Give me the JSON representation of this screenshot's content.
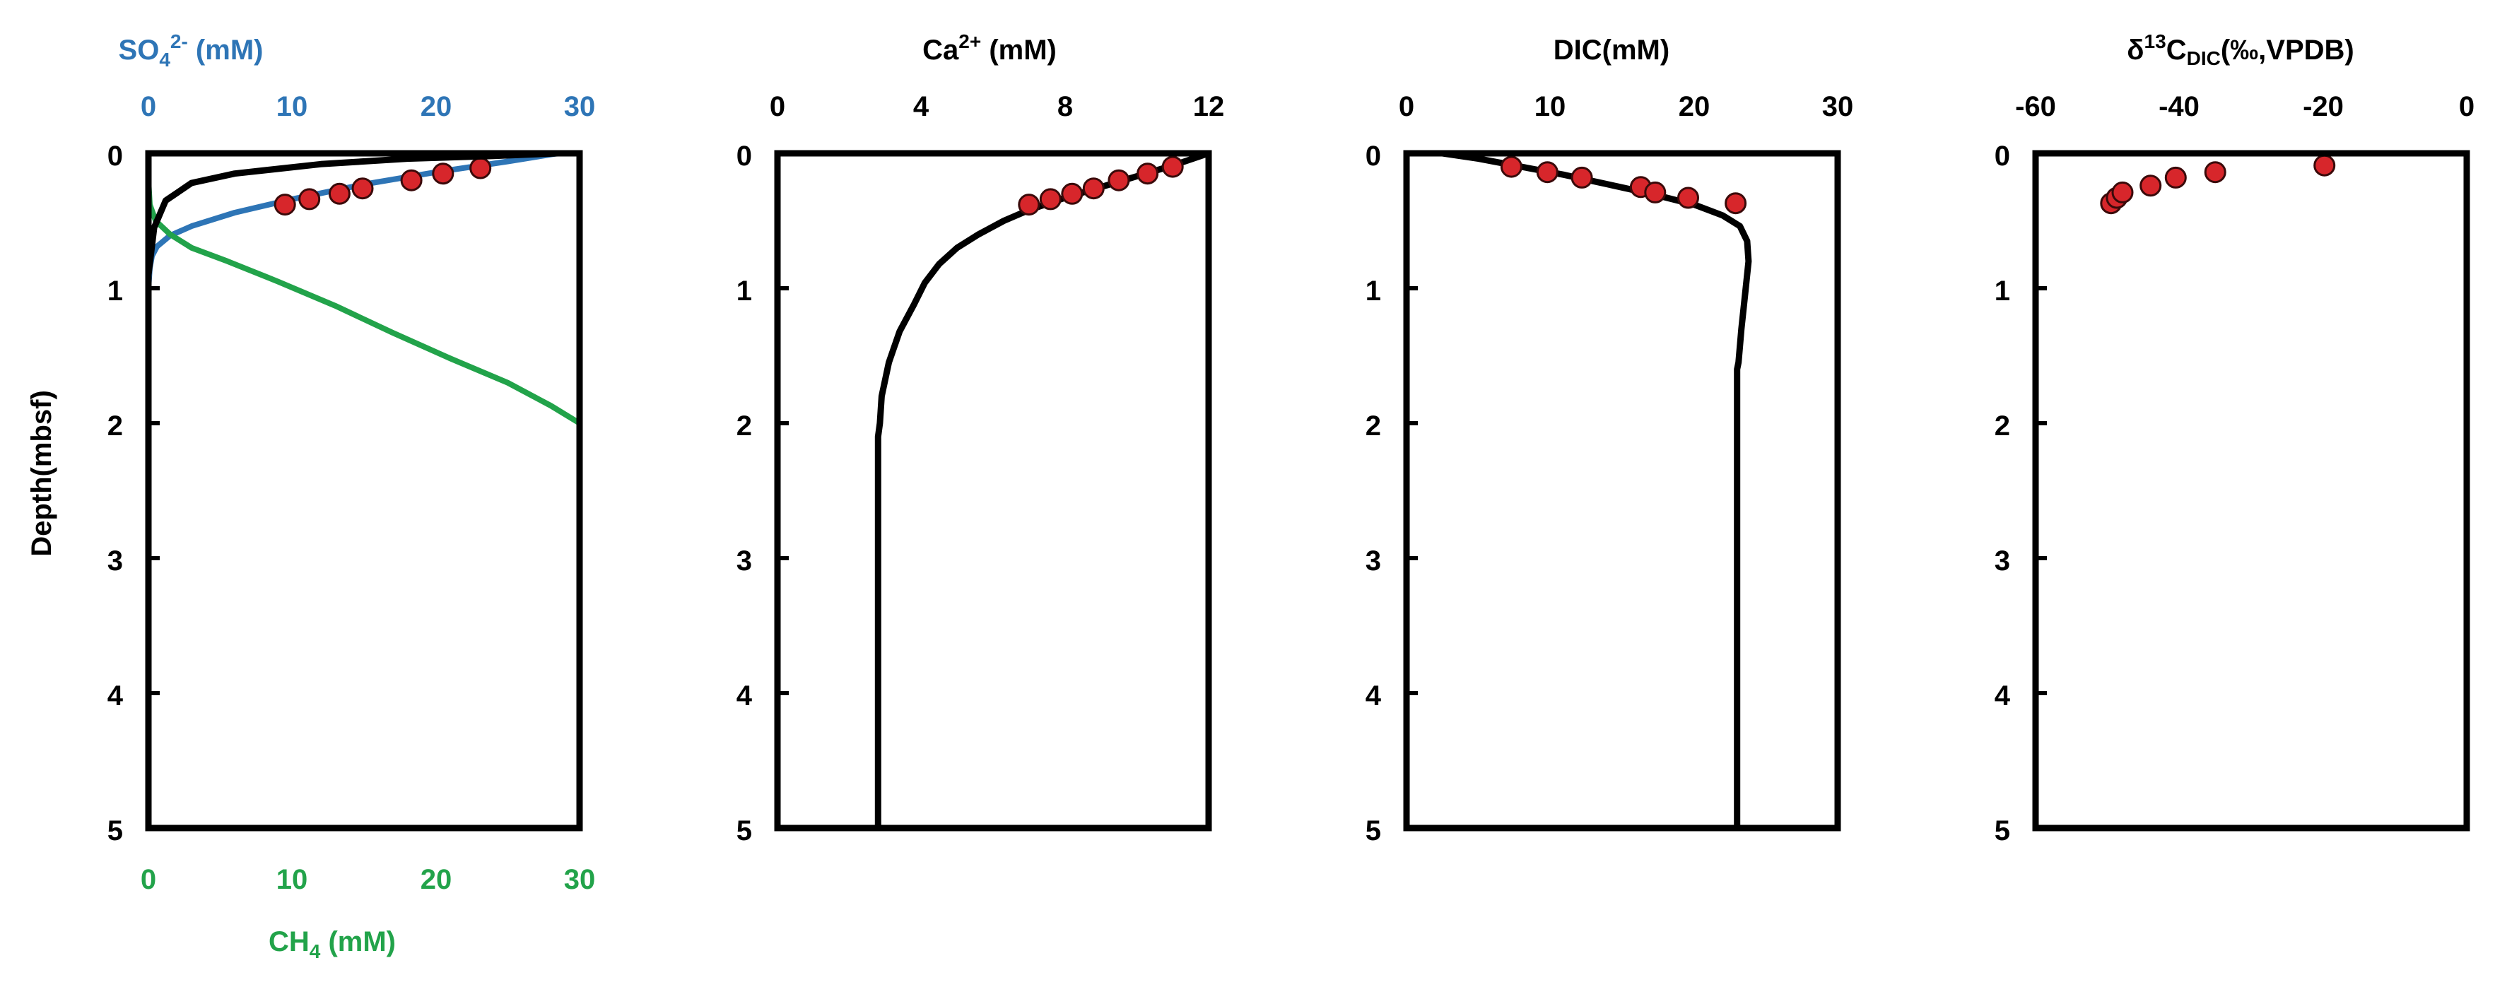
{
  "colors": {
    "sulfate": "#2e75b6",
    "methane": "#22a34a",
    "model": "#000000",
    "marker": "#d7262b"
  },
  "chart_data": [
    {
      "type": "line",
      "ylabel": "Depth(mbsf)",
      "ylim": [
        5,
        0
      ],
      "y_ticks": [
        "0",
        "1",
        "2",
        "3",
        "4",
        "5"
      ],
      "top_axis": {
        "label_main": "SO",
        "label_sub": "4",
        "label_sup": "2-",
        "label_unit": " (mM)",
        "xlim": [
          0,
          30
        ],
        "ticks": [
          "0",
          "10",
          "20",
          "30"
        ]
      },
      "bottom_axis": {
        "label_main": "CH",
        "label_sub": "4",
        "label_unit": " (mM)",
        "xlim": [
          0,
          30
        ],
        "ticks": [
          "0",
          "10",
          "20",
          "30"
        ]
      },
      "series": [
        {
          "key": "so4_model",
          "axis": "top",
          "style": "line",
          "color": "#2e75b6",
          "x": [
            28.5,
            25,
            20,
            15,
            10,
            6,
            3,
            1.5,
            0.6,
            0.25,
            0.1,
            0,
            0
          ],
          "y": [
            0,
            0.06,
            0.14,
            0.23,
            0.34,
            0.44,
            0.54,
            0.61,
            0.69,
            0.76,
            0.85,
            1.0,
            5.0
          ]
        },
        {
          "key": "so4_measured",
          "axis": "top",
          "style": "points",
          "color": "#d7262b",
          "x": [
            9.5,
            11.2,
            13.3,
            14.9,
            18.3,
            20.5,
            23.1
          ],
          "y": [
            0.38,
            0.34,
            0.3,
            0.26,
            0.2,
            0.15,
            0.11
          ]
        },
        {
          "key": "ch4_model",
          "axis": "bottom",
          "style": "line",
          "color": "#22a34a",
          "x": [
            0,
            0,
            0.1,
            0.5,
            1.5,
            3,
            5.5,
            9,
            13,
            17,
            21,
            25,
            28,
            30
          ],
          "y": [
            0,
            0.2,
            0.38,
            0.5,
            0.6,
            0.7,
            0.8,
            0.95,
            1.13,
            1.33,
            1.52,
            1.7,
            1.87,
            2.0
          ]
        },
        {
          "key": "ch4_top",
          "axis": "bottom",
          "style": "line",
          "color": "#000000",
          "x": [
            0,
            0.4,
            1.2,
            3,
            6,
            12,
            18,
            24,
            28.5
          ],
          "y": [
            0.9,
            0.55,
            0.35,
            0.22,
            0.15,
            0.08,
            0.04,
            0.02,
            0
          ]
        }
      ]
    },
    {
      "type": "line",
      "ylim": [
        5,
        0
      ],
      "y_ticks": [
        "0",
        "1",
        "2",
        "3",
        "4",
        "5"
      ],
      "top_axis": {
        "label_main": "Ca",
        "label_sup": "2+",
        "label_unit": " (mM)",
        "xlim": [
          0,
          12
        ],
        "ticks": [
          "0",
          "4",
          "8",
          "12"
        ]
      },
      "series": [
        {
          "key": "ca_model",
          "style": "line",
          "color": "#000000",
          "x": [
            12,
            11,
            10,
            9,
            8,
            7,
            6.3,
            5.6,
            5,
            4.5,
            4.1,
            3.8,
            3.4,
            3.1,
            2.9,
            2.85,
            2.8,
            2.8,
            2.8
          ],
          "y": [
            0,
            0.09,
            0.17,
            0.25,
            0.33,
            0.42,
            0.5,
            0.6,
            0.7,
            0.82,
            0.96,
            1.12,
            1.32,
            1.55,
            1.8,
            2.0,
            2.1,
            3.5,
            5.0
          ]
        },
        {
          "key": "ca_measured",
          "style": "points",
          "color": "#d7262b",
          "x": [
            7.0,
            7.6,
            8.2,
            8.8,
            9.5,
            10.3,
            11.0
          ],
          "y": [
            0.38,
            0.34,
            0.3,
            0.26,
            0.2,
            0.15,
            0.1
          ]
        }
      ]
    },
    {
      "type": "line",
      "ylim": [
        5,
        0
      ],
      "y_ticks": [
        "0",
        "1",
        "2",
        "3",
        "4",
        "5"
      ],
      "top_axis": {
        "label_main": "DIC",
        "label_unit": "(mM)",
        "xlim": [
          0,
          30
        ],
        "ticks": [
          "0",
          "10",
          "20",
          "30"
        ]
      },
      "series": [
        {
          "key": "dic_model",
          "style": "line",
          "color": "#000000",
          "x": [
            2.5,
            5,
            8,
            11,
            14,
            17,
            20,
            22,
            23.2,
            23.7,
            23.8,
            23.6,
            23.3,
            23.1,
            23.0,
            23.0
          ],
          "y": [
            0,
            0.04,
            0.1,
            0.16,
            0.23,
            0.3,
            0.38,
            0.46,
            0.54,
            0.65,
            0.8,
            1.0,
            1.3,
            1.55,
            1.6,
            5.0
          ]
        },
        {
          "key": "dic_measured",
          "style": "points",
          "color": "#d7262b",
          "x": [
            7.3,
            9.8,
            12.2,
            16.3,
            17.3,
            19.6,
            22.9
          ],
          "y": [
            0.1,
            0.14,
            0.18,
            0.25,
            0.29,
            0.33,
            0.37
          ]
        }
      ]
    },
    {
      "type": "scatter",
      "ylim": [
        5,
        0
      ],
      "y_ticks": [
        "0",
        "1",
        "2",
        "3",
        "4",
        "5"
      ],
      "top_axis": {
        "label_main": "δ",
        "label_sup": "13",
        "label_mid": "C",
        "label_sub": "DIC",
        "label_unit": "(‰,VPDB)",
        "xlim": [
          -60,
          0
        ],
        "ticks": [
          "-60",
          "-40",
          "-20",
          "0"
        ]
      },
      "series": [
        {
          "key": "d13c_measured",
          "style": "points",
          "color": "#d7262b",
          "x": [
            -49.5,
            -48.7,
            -47.9,
            -44.0,
            -40.5,
            -35.0,
            -19.8
          ],
          "y": [
            0.37,
            0.33,
            0.29,
            0.24,
            0.18,
            0.14,
            0.09
          ]
        }
      ]
    }
  ]
}
